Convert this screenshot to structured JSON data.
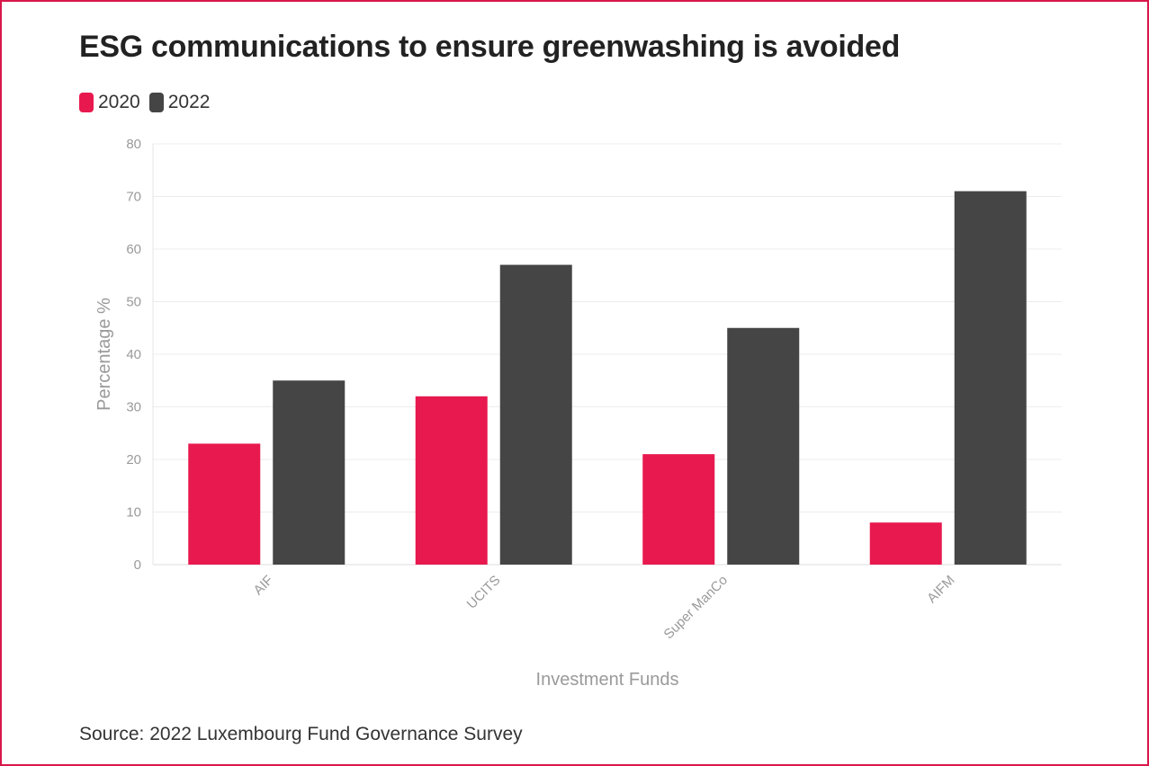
{
  "title": "ESG communications to ensure greenwashing is avoided",
  "source": "Source: 2022 Luxembourg Fund Governance Survey",
  "colors": {
    "series_2020": "#e8194f",
    "series_2022": "#454545",
    "frame": "#d8174a",
    "grid": "#ececec",
    "axis_text": "#9a9a9a"
  },
  "chart_data": {
    "type": "bar",
    "title": "ESG communications to ensure greenwashing is avoided",
    "xlabel": "Investment Funds",
    "ylabel": "Percentage %",
    "categories": [
      "AIF",
      "UCITS",
      "Super ManCo",
      "AIFM"
    ],
    "series": [
      {
        "name": "2020",
        "values": [
          23,
          32,
          21,
          8
        ]
      },
      {
        "name": "2022",
        "values": [
          35,
          57,
          45,
          71
        ]
      }
    ],
    "ylim": [
      0,
      80
    ],
    "yticks": [
      0,
      10,
      20,
      30,
      40,
      50,
      60,
      70,
      80
    ],
    "grid": true,
    "legend_position": "top-left"
  }
}
